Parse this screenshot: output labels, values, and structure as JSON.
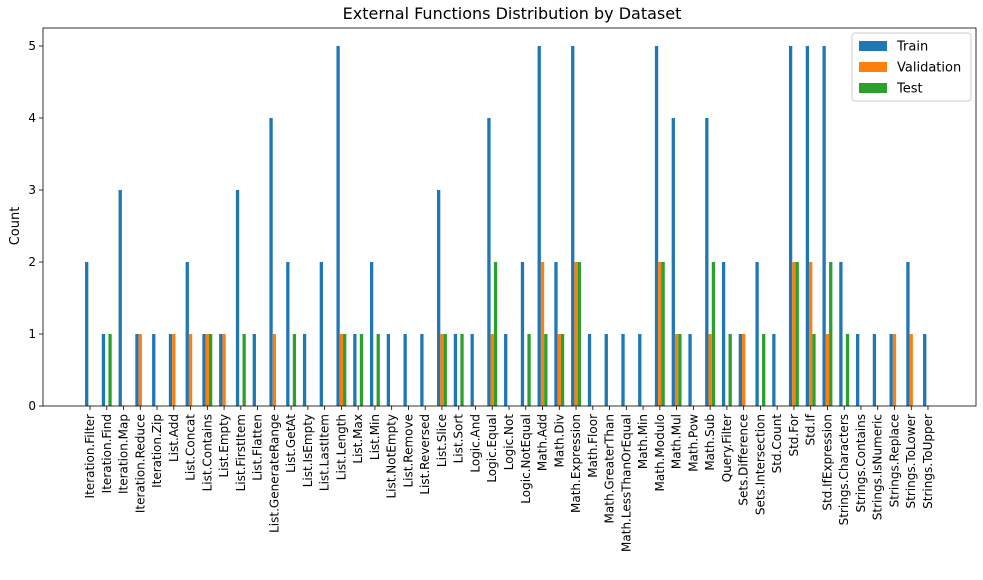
{
  "chart_data": {
    "type": "bar",
    "title": "External Functions Distribution by Dataset",
    "xlabel": "",
    "ylabel": "Count",
    "ylim": [
      0,
      5.25
    ],
    "yticks": [
      0,
      1,
      2,
      3,
      4,
      5
    ],
    "grid": false,
    "legend_position": "top-right",
    "categories": [
      "Iteration.Filter",
      "Iteration.Find",
      "Iteration.Map",
      "Iteration.Reduce",
      "Iteration.Zip",
      "List.Add",
      "List.Concat",
      "List.Contains",
      "List.Empty",
      "List.FirstItem",
      "List.Flatten",
      "List.GenerateRange",
      "List.GetAt",
      "List.IsEmpty",
      "List.LastItem",
      "List.Length",
      "List.Max",
      "List.Min",
      "List.NotEmpty",
      "List.Remove",
      "List.Reversed",
      "List.Slice",
      "List.Sort",
      "Logic.And",
      "Logic.Equal",
      "Logic.Not",
      "Logic.NotEqual",
      "Math.Add",
      "Math.Div",
      "Math.Expression",
      "Math.Floor",
      "Math.GreaterThan",
      "Math.LessThanOrEqual",
      "Math.Min",
      "Math.Modulo",
      "Math.Mul",
      "Math.Pow",
      "Math.Sub",
      "Query.Filter",
      "Sets.Difference",
      "Sets.Intersection",
      "Std.Count",
      "Std.For",
      "Std.If",
      "Std.IfExpression",
      "Strings.Characters",
      "Strings.Contains",
      "Strings.IsNumeric",
      "Strings.Replace",
      "Strings.ToLower",
      "Strings.ToUpper"
    ],
    "series": [
      {
        "name": "Train",
        "color": "#1f77b4",
        "values": [
          2,
          1,
          3,
          1,
          1,
          1,
          2,
          1,
          1,
          3,
          1,
          4,
          2,
          1,
          2,
          5,
          1,
          2,
          1,
          1,
          1,
          3,
          1,
          1,
          4,
          1,
          2,
          5,
          2,
          5,
          1,
          1,
          1,
          1,
          5,
          4,
          1,
          4,
          2,
          1,
          2,
          1,
          5,
          5,
          5,
          2,
          1,
          1,
          1,
          2,
          1
        ]
      },
      {
        "name": "Validation",
        "color": "#ff7f0e",
        "values": [
          0,
          0,
          0,
          1,
          0,
          1,
          1,
          1,
          1,
          0,
          0,
          1,
          0,
          0,
          0,
          1,
          0,
          0,
          0,
          0,
          0,
          1,
          0,
          0,
          1,
          0,
          0,
          2,
          1,
          2,
          0,
          0,
          0,
          0,
          2,
          1,
          0,
          1,
          0,
          1,
          0,
          0,
          2,
          2,
          1,
          0,
          0,
          0,
          1,
          1,
          0
        ]
      },
      {
        "name": "Test",
        "color": "#2ca02c",
        "values": [
          0,
          1,
          0,
          0,
          0,
          0,
          0,
          1,
          0,
          1,
          0,
          0,
          1,
          0,
          0,
          1,
          1,
          1,
          0,
          0,
          0,
          1,
          1,
          0,
          2,
          0,
          1,
          1,
          1,
          2,
          0,
          0,
          0,
          0,
          2,
          1,
          0,
          2,
          1,
          0,
          1,
          0,
          2,
          1,
          2,
          1,
          0,
          0,
          0,
          0,
          0
        ]
      }
    ]
  }
}
